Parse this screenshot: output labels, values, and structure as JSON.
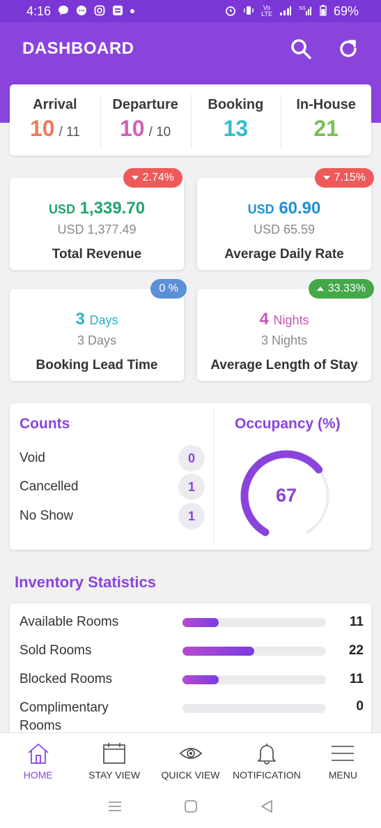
{
  "status_bar": {
    "time": "4:16",
    "battery": "69%",
    "left_icons": [
      "chat-icon",
      "messenger-icon",
      "instagram-icon",
      "app-icon"
    ],
    "right_icons": [
      "alarm-icon",
      "vibrate-icon",
      "volte-icon",
      "signal-icon",
      "5g-signal-icon",
      "battery-icon"
    ]
  },
  "header": {
    "title": "DASHBOARD",
    "icons": [
      "search-icon",
      "refresh-icon"
    ]
  },
  "colors": {
    "brand": "#8a44dc",
    "arrival": "#ee7a5a",
    "departure": "#d062b7",
    "booking": "#2ebfca",
    "inhouse": "#79bf55",
    "revenue": "#23a36b",
    "adr": "#1e90d6",
    "lead": "#2ab0c4",
    "stay": "#c458b0",
    "badge_down": "#ee5a5a",
    "badge_neutral": "#5b8fd6",
    "badge_up": "#44a84a"
  },
  "summary": {
    "arrival": {
      "label": "Arrival",
      "value": "10",
      "total": "/ 11"
    },
    "departure": {
      "label": "Departure",
      "value": "10",
      "total": "/ 10"
    },
    "booking": {
      "label": "Booking",
      "value": "13"
    },
    "inhouse": {
      "label": "In-House",
      "value": "21"
    }
  },
  "metrics": {
    "revenue": {
      "unit": "USD",
      "value": "1,339.70",
      "previous": "USD 1,377.49",
      "label": "Total Revenue",
      "badge": "2.74%",
      "trend": "down"
    },
    "adr": {
      "unit": "USD",
      "value": "60.90",
      "previous": "USD 65.59",
      "label": "Average Daily Rate",
      "badge": "7.15%",
      "trend": "down"
    },
    "lead_time": {
      "value": "3",
      "unit": "Days",
      "previous": "3 Days",
      "label": "Booking Lead Time",
      "badge": "0 %",
      "trend": "neutral"
    },
    "length_of_stay": {
      "value": "4",
      "unit": "Nights",
      "previous": "3 Nights",
      "label": "Average Length of Stay",
      "badge": "33.33%",
      "trend": "up"
    }
  },
  "counts": {
    "title": "Counts",
    "items": [
      {
        "label": "Void",
        "value": "0"
      },
      {
        "label": "Cancelled",
        "value": "1"
      },
      {
        "label": "No Show",
        "value": "1"
      }
    ]
  },
  "occupancy": {
    "title": "Occupancy (%)",
    "value": "67",
    "percent": 67
  },
  "inventory": {
    "title": "Inventory Statistics",
    "items": [
      {
        "label": "Available Rooms",
        "value": "11",
        "fraction": 0.25
      },
      {
        "label": "Sold Rooms",
        "value": "22",
        "fraction": 0.5
      },
      {
        "label": "Blocked Rooms",
        "value": "11",
        "fraction": 0.25
      },
      {
        "label": "Complimentary Rooms",
        "value": "0",
        "fraction": 0
      }
    ]
  },
  "nav": {
    "items": [
      {
        "label": "HOME",
        "icon": "home-icon",
        "active": true
      },
      {
        "label": "STAY VIEW",
        "icon": "calendar-icon",
        "active": false
      },
      {
        "label": "QUICK VIEW",
        "icon": "eye-icon",
        "active": false
      },
      {
        "label": "NOTIFICATION",
        "icon": "bell-icon",
        "active": false
      },
      {
        "label": "MENU",
        "icon": "menu-icon",
        "active": false
      }
    ]
  },
  "system_nav": [
    "recents-icon",
    "home-button-icon",
    "back-icon"
  ]
}
